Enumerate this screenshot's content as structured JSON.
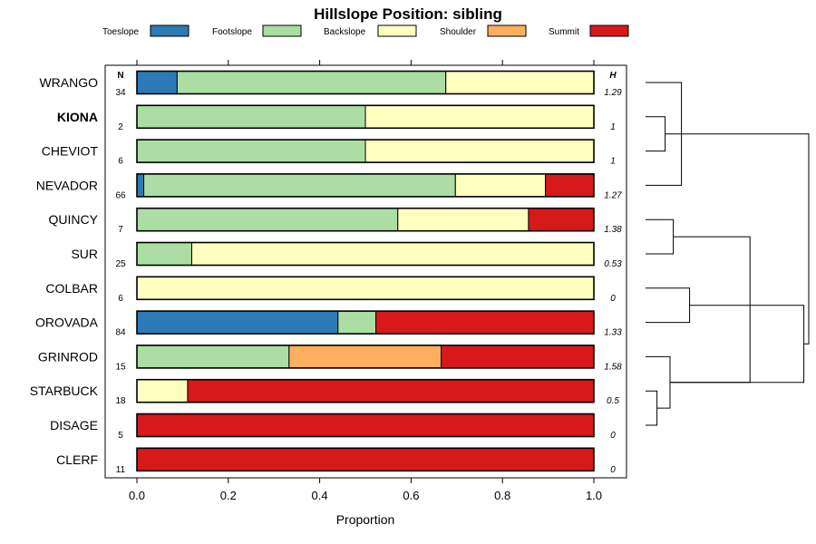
{
  "chart_data": {
    "type": "bar",
    "orientation": "horizontal",
    "stacked": true,
    "title": "Hillslope Position: sibling",
    "xlabel": "Proportion",
    "ylabel": "",
    "xlim": [
      0,
      1
    ],
    "x_ticks": [
      "0.0",
      "0.2",
      "0.4",
      "0.6",
      "0.8",
      "1.0"
    ],
    "legend": {
      "position": "top",
      "entries": [
        {
          "label": "Toeslope",
          "color": "#2C7BB6"
        },
        {
          "label": "Footslope",
          "color": "#ABDDA4"
        },
        {
          "label": "Backslope",
          "color": "#FFFFBF"
        },
        {
          "label": "Shoulder",
          "color": "#FDAE61"
        },
        {
          "label": "Summit",
          "color": "#D7191C"
        }
      ]
    },
    "n_header": "N",
    "h_header": "H",
    "categories": [
      "WRANGO",
      "KIONA",
      "CHEVIOT",
      "NEVADOR",
      "QUINCY",
      "SUR",
      "COLBAR",
      "OROVADA",
      "GRINROD",
      "STARBUCK",
      "DISAGE",
      "CLERF"
    ],
    "highlighted_category": "KIONA",
    "n_values": [
      "34",
      "2",
      "6",
      "66",
      "7",
      "25",
      "6",
      "84",
      "15",
      "18",
      "5",
      "11"
    ],
    "h_values": [
      "1.29",
      "1",
      "1",
      "1.27",
      "1.38",
      "0.53",
      "0",
      "1.33",
      "1.58",
      "0.5",
      "0",
      "0"
    ],
    "series": [
      {
        "name": "Toeslope",
        "values": [
          0.088,
          0,
          0,
          0.015,
          0,
          0,
          0,
          0.44,
          0,
          0,
          0,
          0
        ]
      },
      {
        "name": "Footslope",
        "values": [
          0.588,
          0.5,
          0.5,
          0.682,
          0.571,
          0.12,
          0,
          0.083,
          0.333,
          0,
          0,
          0
        ]
      },
      {
        "name": "Backslope",
        "values": [
          0.324,
          0.5,
          0.5,
          0.197,
          0.286,
          0.88,
          1,
          0,
          0,
          0.111,
          0,
          0
        ]
      },
      {
        "name": "Shoulder",
        "values": [
          0,
          0,
          0,
          0,
          0,
          0,
          0,
          0,
          0.333,
          0,
          0,
          0
        ]
      },
      {
        "name": "Summit",
        "values": [
          0,
          0,
          0,
          0.106,
          0.143,
          0,
          0,
          0.477,
          0.334,
          0.889,
          1,
          1
        ]
      }
    ],
    "dendrogram_merges": [
      [
        2,
        3,
        0.12
      ],
      [
        1,
        4,
        0.22
      ],
      [
        10,
        11,
        0.07
      ],
      [
        9,
        -3,
        0.15
      ],
      [
        5,
        6,
        0.17
      ],
      [
        7,
        8,
        0.27
      ],
      [
        -1,
        -2,
        0.5
      ],
      [
        -4,
        -5,
        0.64
      ],
      [
        -6,
        -4,
        0.97
      ],
      [
        -7,
        -9,
        1.0
      ]
    ]
  }
}
